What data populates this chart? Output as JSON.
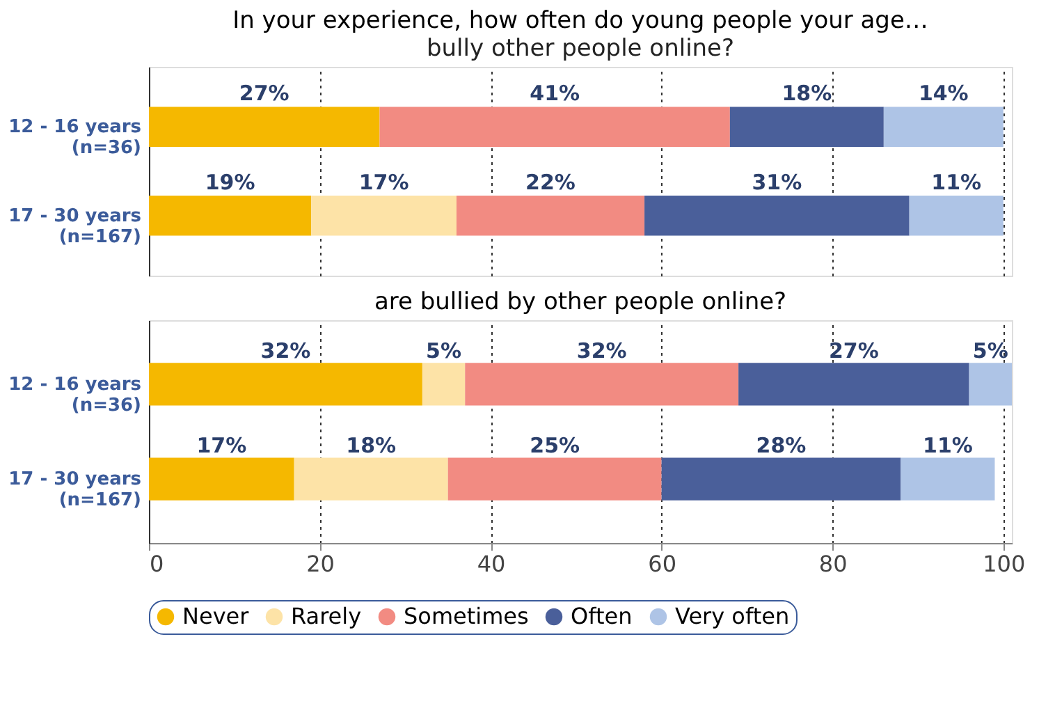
{
  "chart_data": [
    {
      "type": "bar",
      "orientation": "horizontal",
      "stacked": true,
      "title": "In your experience, how often do young people your age…",
      "subtitle": "bully other people online?",
      "categories": [
        "12 - 16 years\n(n=36)",
        "17 - 30 years\n(n=167)"
      ],
      "series": [
        {
          "color": "#f5b800",
          "values": [
            27,
            19
          ],
          "value_labels": [
            "27%",
            "19%"
          ]
        },
        {
          "color": "#fde3a7",
          "values": [
            null,
            17
          ],
          "value_labels": [
            null,
            "17%"
          ]
        },
        {
          "color": "#f28b82",
          "values": [
            41,
            22
          ],
          "value_labels": [
            "41%",
            "22%"
          ]
        },
        {
          "color": "#4a5f9a",
          "values": [
            18,
            31
          ],
          "value_labels": [
            "18%",
            "31%"
          ]
        },
        {
          "color": "#aec4e6",
          "values": [
            14,
            11
          ],
          "value_labels": [
            "14%",
            "11%"
          ]
        }
      ],
      "xlim": [
        0,
        101
      ],
      "xticks": [
        0,
        20,
        40,
        60,
        80,
        100
      ],
      "grid": "x",
      "tick_labels": "y"
    },
    {
      "type": "bar",
      "orientation": "horizontal",
      "stacked": true,
      "title": "are bullied by other people online?",
      "categories": [
        "12 - 16 years\n(n=36)",
        "17 - 30 years\n(n=167)"
      ],
      "series": [
        {
          "name": "Never",
          "color": "#f5b800",
          "values": [
            32,
            17
          ],
          "value_labels": [
            "32%",
            "17%"
          ]
        },
        {
          "name": "Rarely",
          "color": "#fde3a7",
          "values": [
            5,
            18
          ],
          "value_labels": [
            "5%",
            "18%"
          ]
        },
        {
          "name": "Sometimes",
          "color": "#f28b82",
          "values": [
            32,
            25
          ],
          "value_labels": [
            "32%",
            "25%"
          ]
        },
        {
          "name": "Often",
          "color": "#4a5f9a",
          "values": [
            27,
            28
          ],
          "value_labels": [
            "27%",
            "28%"
          ]
        },
        {
          "name": "Very often",
          "color": "#aec4e6",
          "values": [
            5,
            11
          ],
          "value_labels": [
            "5%",
            "11%"
          ]
        }
      ],
      "xlim": [
        0,
        101
      ],
      "xticks": [
        0,
        20,
        40,
        60,
        80,
        100
      ],
      "grid": "x",
      "legend": "bottom"
    }
  ]
}
